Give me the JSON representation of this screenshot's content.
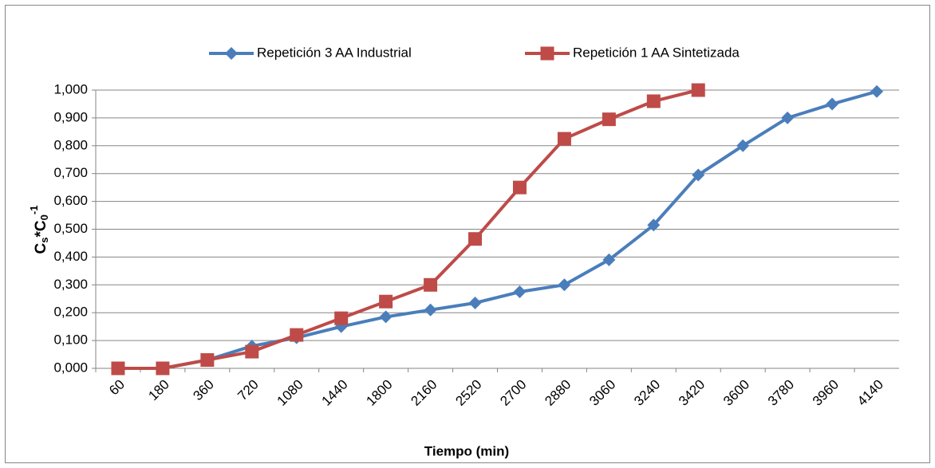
{
  "chart_data": {
    "type": "line",
    "xlabel": "Tiempo (min)",
    "ylabel": [
      "C",
      "s",
      "*C",
      "0",
      "-1"
    ],
    "categories": [
      "60",
      "180",
      "360",
      "720",
      "1080",
      "1440",
      "1800",
      "2160",
      "2520",
      "2700",
      "2880",
      "3060",
      "3240",
      "3420",
      "3600",
      "3780",
      "3960",
      "4140"
    ],
    "series": [
      {
        "name": "Repetición 3 AA Industrial",
        "color": "#4a7ebb",
        "marker": "diamond",
        "values": [
          0,
          0,
          0.03,
          0.08,
          0.11,
          0.15,
          0.185,
          0.21,
          0.235,
          0.275,
          0.3,
          0.39,
          0.515,
          0.695,
          0.8,
          0.9,
          0.95,
          0.995
        ]
      },
      {
        "name": "Repetición 1 AA Sintetizada",
        "color": "#be4b48",
        "marker": "square",
        "values": [
          0,
          0,
          0.03,
          0.06,
          0.12,
          0.18,
          0.24,
          0.3,
          0.465,
          0.65,
          0.825,
          0.895,
          0.96,
          1.0,
          null,
          null,
          null,
          null
        ]
      }
    ],
    "ylim": [
      0,
      1
    ],
    "yticks": [
      {
        "value": 0,
        "label": "0,000"
      },
      {
        "value": 0.1,
        "label": "0,100"
      },
      {
        "value": 0.2,
        "label": "0,200"
      },
      {
        "value": 0.3,
        "label": "0,300"
      },
      {
        "value": 0.4,
        "label": "0,400"
      },
      {
        "value": 0.5,
        "label": "0,500"
      },
      {
        "value": 0.6,
        "label": "0,600"
      },
      {
        "value": 0.7,
        "label": "0,700"
      },
      {
        "value": 0.8,
        "label": "0,800"
      },
      {
        "value": 0.9,
        "label": "0,900"
      },
      {
        "value": 1.0,
        "label": "1,000"
      }
    ],
    "grid": true,
    "legend": "top"
  }
}
